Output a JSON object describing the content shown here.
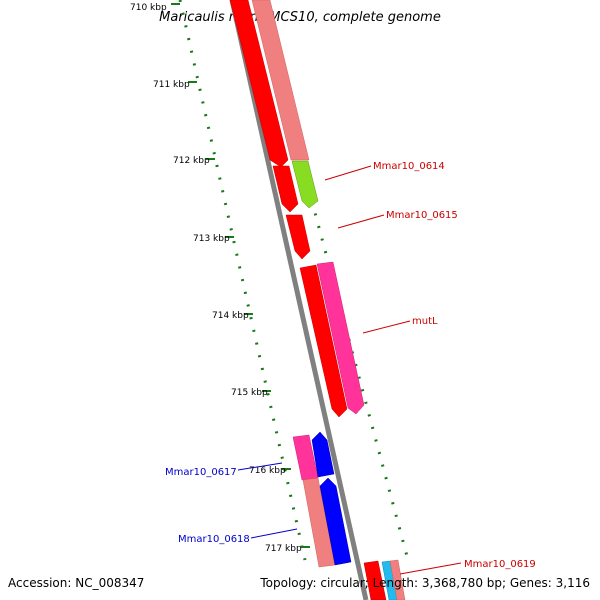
{
  "title": "Maricaulis maris MCS10, complete genome",
  "footer": {
    "accession": "Accession: NC_008347",
    "summary": "Topology: circular; Length: 3,368,780 bp; Genes: 3,116"
  },
  "ticks": [
    {
      "label": "710 kbp"
    },
    {
      "label": "711 kbp"
    },
    {
      "label": "712 kbp"
    },
    {
      "label": "713 kbp"
    },
    {
      "label": "714 kbp"
    },
    {
      "label": "715 kbp"
    },
    {
      "label": "716 kbp"
    },
    {
      "label": "717 kbp"
    }
  ],
  "gene_labels": [
    {
      "label": "Mmar10_0614",
      "color": "#cc0000"
    },
    {
      "label": "Mmar10_0615",
      "color": "#cc0000"
    },
    {
      "label": "mutL",
      "color": "#cc0000"
    },
    {
      "label": "Mmar10_0617",
      "color": "#0000cc"
    },
    {
      "label": "Mmar10_0618",
      "color": "#0000cc"
    },
    {
      "label": "Mmar10_0619",
      "color": "#cc0000"
    }
  ],
  "colors": {
    "backbone": "#808080",
    "forward_gene": "#ff0000",
    "reverse_gene": "#0000ff",
    "rrna_pink": "#ff3399",
    "light_red": "#f08080",
    "green_gene": "#88dd22",
    "cyan_gene": "#22bbee",
    "tick": "#1a7a1a"
  }
}
